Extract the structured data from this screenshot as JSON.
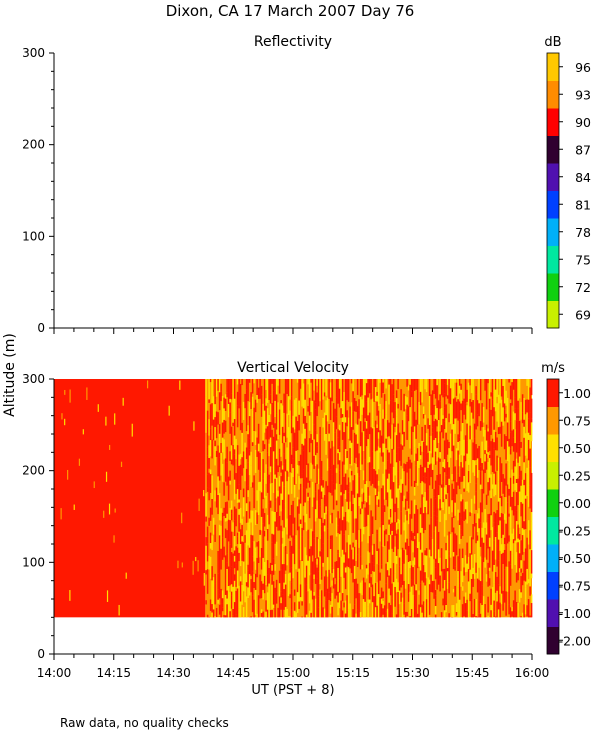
{
  "title": "Dixon, CA 17 March 2007  Day  76",
  "footer_note": "Raw data, no quality checks",
  "y_axis_label": "Altitude (m)",
  "x_axis_label": "UT  (PST + 8)",
  "chart_data": [
    {
      "type": "heatmap",
      "title": "Reflectivity",
      "x_ticks": [
        "14:00",
        "14:15",
        "14:30",
        "14:45",
        "15:00",
        "15:15",
        "15:30",
        "15:45",
        "16:00"
      ],
      "y_ticks": [
        0,
        100,
        200,
        300
      ],
      "ylim": [
        0,
        300
      ],
      "colorbar": {
        "unit": "dB",
        "ticks": [
          "69",
          "72",
          "75",
          "78",
          "81",
          "84",
          "87",
          "90",
          "93",
          "96"
        ],
        "colors": [
          "#c8f000",
          "#10d010",
          "#00e8a0",
          "#00b0f8",
          "#0040ff",
          "#5010b0",
          "#300030",
          "#ff0000",
          "#ff8c00",
          "#ffc800"
        ]
      },
      "data": "empty (no reflectivity data shown)"
    },
    {
      "type": "heatmap",
      "title": "Vertical Velocity",
      "x_ticks": [
        "14:00",
        "14:15",
        "14:30",
        "14:45",
        "15:00",
        "15:15",
        "15:30",
        "15:45",
        "16:00"
      ],
      "y_ticks": [
        0,
        100,
        200,
        300
      ],
      "ylim": [
        0,
        300
      ],
      "xlim": [
        "14:00",
        "16:00"
      ],
      "data_altitude_range": [
        40,
        300
      ],
      "colorbar": {
        "unit": "m/s",
        "ticks": [
          "-2.00",
          "-1.00",
          "-0.75",
          "-0.50",
          "-0.25",
          "0.00",
          "0.25",
          "0.50",
          "0.75",
          "1.00"
        ],
        "colors": [
          "#300030",
          "#5010b0",
          "#0040ff",
          "#00b0f8",
          "#00e8a0",
          "#10d010",
          "#c8f000",
          "#ffe000",
          "#ff9800",
          "#ff1800"
        ]
      },
      "regimes": [
        {
          "start": "14:00",
          "end": "14:38",
          "dominant": "1.00"
        },
        {
          "start": "14:38",
          "end": "16:00",
          "dominant": "0.50 to 1.00 (mixed)"
        }
      ]
    }
  ]
}
